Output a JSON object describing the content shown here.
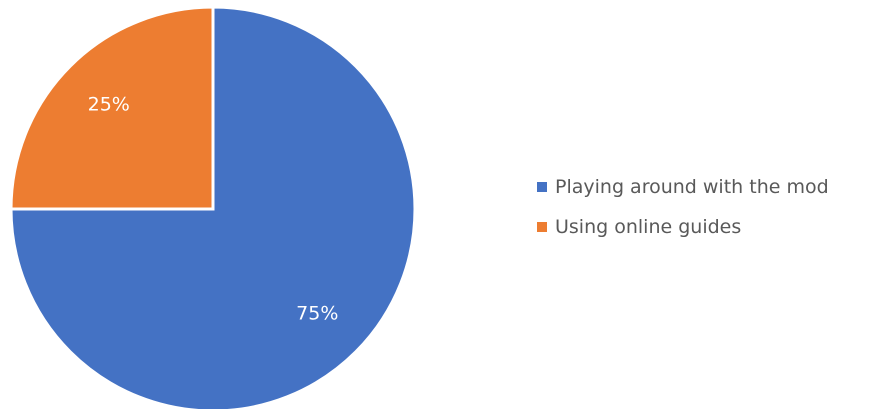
{
  "chart_data": {
    "type": "pie",
    "title": "",
    "slices": [
      {
        "label": "Playing around with the mod",
        "value": 75,
        "display": "75%",
        "color": "#4472C4"
      },
      {
        "label": "Using online guides",
        "value": 25,
        "display": "25%",
        "color": "#ED7D31"
      }
    ],
    "legend_position": "right"
  }
}
